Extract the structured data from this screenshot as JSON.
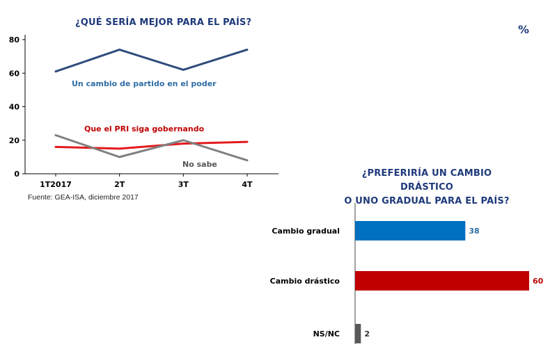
{
  "page": {
    "percent_label": "%"
  },
  "chart_data": [
    {
      "type": "line",
      "title": "¿QUÉ SERÍA MEJOR PARA EL PAÍS?",
      "categories": [
        "1T2017",
        "2T",
        "3T",
        "4T"
      ],
      "ylim": [
        0,
        80
      ],
      "yticks": [
        "0",
        "20",
        "40",
        "60",
        "80"
      ],
      "grid": false,
      "series": [
        {
          "name": "Un cambio de partido en el poder",
          "values": [
            61,
            74,
            62,
            74
          ],
          "color": "#2f4b7c",
          "label_color": "#2e6da4"
        },
        {
          "name": "Que el PRI siga gobernando",
          "values": [
            16,
            15,
            18,
            19
          ],
          "color": "#e31a1c",
          "label_color": "#c00000"
        },
        {
          "name": "No sabe",
          "values": [
            23,
            10,
            20,
            8
          ],
          "color": "#808080",
          "label_color": "#555555"
        }
      ],
      "source": "Fuente: GEA-ISA, diciembre 2017"
    },
    {
      "type": "bar",
      "orientation": "horizontal",
      "title_lines": [
        "¿PREFERIRÍA UN CAMBIO DRÁSTICO",
        "O UNO GRADUAL PARA EL PAÍS?"
      ],
      "categories": [
        "Cambio gradual",
        "Cambio drástico",
        "NS/NC"
      ],
      "values": [
        38,
        60,
        2
      ],
      "labels": [
        "38",
        "60",
        "2"
      ],
      "colors": [
        "#0070c0",
        "#c00000",
        "#595959"
      ],
      "label_colors": [
        "#2e6da4",
        "#c00000",
        "#333333"
      ],
      "xlim": [
        0,
        60
      ]
    }
  ]
}
